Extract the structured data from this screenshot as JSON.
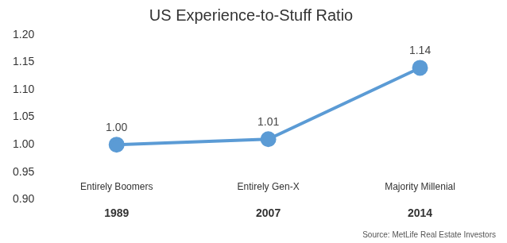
{
  "chart_data": {
    "type": "line",
    "title": "US Experience-to-Stuff Ratio",
    "source": "Source: MetLife Real Estate Investors",
    "categories": [
      "1989",
      "2007",
      "2014"
    ],
    "annotations": [
      "Entirely Boomers",
      "Entirely Gen-X",
      "Majority Millenial"
    ],
    "values": [
      1.0,
      1.01,
      1.14
    ],
    "value_labels": [
      "1.00",
      "1.01",
      "1.14"
    ],
    "data_labels": true,
    "color": "#5b9bd5",
    "marker": "circle",
    "ylim": [
      0.9,
      1.2
    ],
    "yticks": [
      {
        "value": 0.9,
        "label": "0.90"
      },
      0.95,
      {
        "value": 1.0,
        "label": "1.00"
      },
      1.05,
      {
        "value": 1.1,
        "label": "1.10"
      },
      1.15,
      {
        "value": 1.2,
        "label": "1.20"
      }
    ],
    "grid": false
  }
}
